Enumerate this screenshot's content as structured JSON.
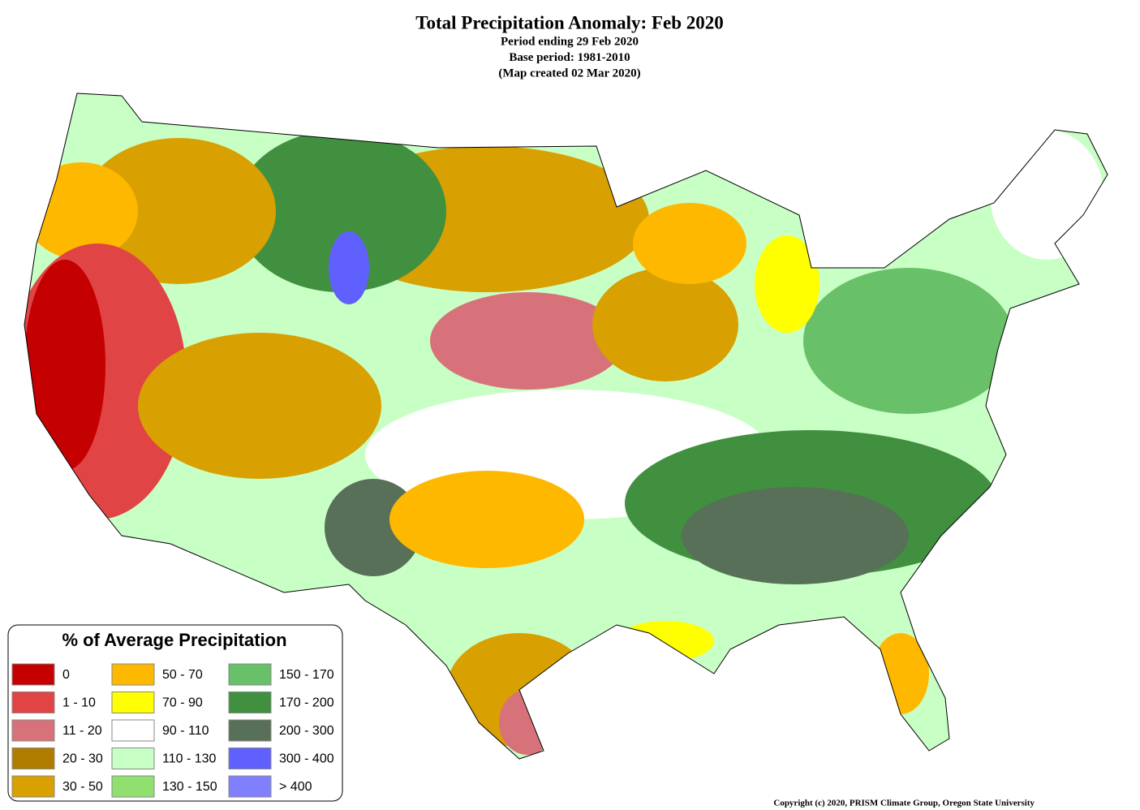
{
  "header": {
    "title": "Total Precipitation Anomaly: Feb 2020",
    "subtitle_lines": [
      "Period ending 29 Feb 2020",
      "Base period: 1981-2010",
      "(Map created 02 Mar 2020)"
    ]
  },
  "legend": {
    "title": "% of Average Precipitation",
    "items": [
      {
        "label": "0",
        "color": "#c40000"
      },
      {
        "label": "1 - 10",
        "color": "#e04444"
      },
      {
        "label": "11 - 20",
        "color": "#d8727a"
      },
      {
        "label": "20 - 30",
        "color": "#b07c00"
      },
      {
        "label": "30 - 50",
        "color": "#d8a000"
      },
      {
        "label": "50 - 70",
        "color": "#ffb800"
      },
      {
        "label": "70 - 90",
        "color": "#ffff00"
      },
      {
        "label": "90 - 110",
        "color": "#ffffff"
      },
      {
        "label": "110 - 130",
        "color": "#c8ffc4"
      },
      {
        "label": "130 - 150",
        "color": "#90e070"
      },
      {
        "label": "150 - 170",
        "color": "#68c068"
      },
      {
        "label": "170 - 200",
        "color": "#409040"
      },
      {
        "label": "200 - 300",
        "color": "#587058"
      },
      {
        "label": "300 - 400",
        "color": "#6060ff"
      },
      {
        "label": "> 400",
        "color": "#8080ff"
      }
    ]
  },
  "footer": {
    "copyright": "Copyright (c) 2020, PRISM Climate Group, Oregon State University"
  }
}
